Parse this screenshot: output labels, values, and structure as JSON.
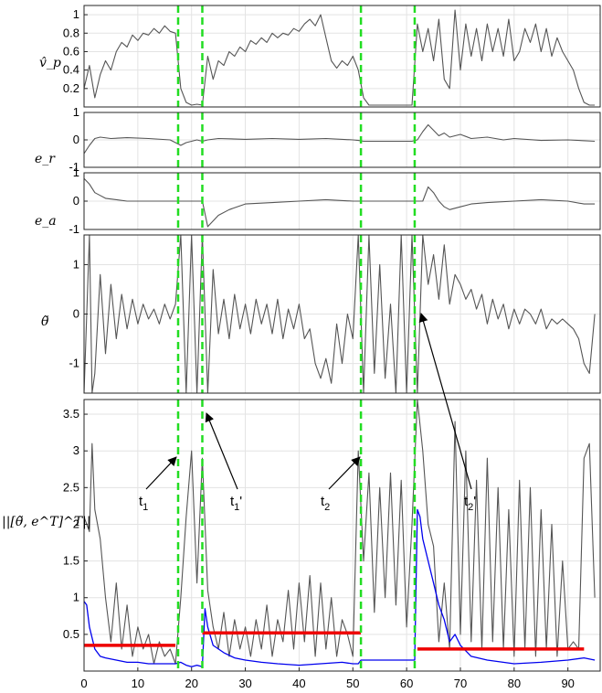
{
  "chart_data": [
    {
      "type": "line",
      "panel": "vp",
      "ylabel": "v̂_p",
      "xlim": [
        0,
        96
      ],
      "ylim": [
        0,
        1.1
      ],
      "yticks": [
        0.2,
        0.4,
        0.6,
        0.8,
        1
      ],
      "grid": true,
      "series": [
        {
          "color": "#555555",
          "x": [
            0,
            1,
            2,
            3,
            4,
            5,
            6,
            7,
            8,
            9,
            10,
            11,
            12,
            13,
            14,
            15,
            16,
            17,
            18,
            19,
            20,
            21,
            22,
            23,
            24,
            25,
            26,
            27,
            28,
            29,
            30,
            31,
            32,
            33,
            34,
            35,
            36,
            37,
            38,
            39,
            40,
            41,
            42,
            43,
            44,
            45,
            46,
            47,
            48,
            49,
            50,
            51,
            52,
            53,
            54,
            55,
            56,
            57,
            58,
            59,
            60,
            61,
            62,
            63,
            64,
            65,
            66,
            67,
            68,
            69,
            70,
            71,
            72,
            73,
            74,
            75,
            76,
            77,
            78,
            79,
            80,
            81,
            82,
            83,
            84,
            85,
            86,
            87,
            88,
            89,
            90,
            91,
            92,
            93,
            94,
            95
          ],
          "y": [
            0.2,
            0.45,
            0.1,
            0.35,
            0.5,
            0.4,
            0.6,
            0.7,
            0.65,
            0.78,
            0.72,
            0.8,
            0.78,
            0.85,
            0.8,
            0.88,
            0.82,
            0.8,
            0.2,
            0.05,
            0.02,
            0.03,
            0.02,
            0.55,
            0.3,
            0.5,
            0.45,
            0.6,
            0.55,
            0.65,
            0.6,
            0.72,
            0.68,
            0.75,
            0.7,
            0.8,
            0.75,
            0.8,
            0.78,
            0.85,
            0.82,
            0.9,
            0.95,
            0.88,
            1.0,
            0.75,
            0.5,
            0.42,
            0.5,
            0.45,
            0.55,
            0.4,
            0.1,
            0.02,
            0.02,
            0.02,
            0.02,
            0.02,
            0.02,
            0.02,
            0.02,
            0.02,
            0.9,
            0.6,
            0.85,
            0.5,
            0.95,
            0.3,
            0.2,
            1.05,
            0.4,
            0.9,
            0.55,
            0.85,
            0.5,
            0.9,
            0.6,
            0.85,
            0.55,
            0.95,
            0.5,
            0.6,
            0.85,
            0.7,
            0.9,
            0.6,
            0.85,
            0.55,
            0.75,
            0.6,
            0.5,
            0.4,
            0.2,
            0.05,
            0.02,
            0.02
          ]
        }
      ]
    },
    {
      "type": "line",
      "panel": "er",
      "ylabel": "e_r",
      "xlim": [
        0,
        96
      ],
      "ylim": [
        -1,
        1
      ],
      "yticks": [
        -1,
        0,
        1
      ],
      "grid": true,
      "series": [
        {
          "color": "#555555",
          "x": [
            0,
            1,
            2,
            3,
            5,
            8,
            12,
            16,
            17,
            18,
            19,
            20,
            21,
            22,
            23,
            25,
            30,
            35,
            40,
            45,
            50,
            51,
            52,
            55,
            60,
            61,
            62,
            63,
            64,
            65,
            66,
            67,
            68,
            70,
            72,
            75,
            78,
            80,
            85,
            90,
            95
          ],
          "y": [
            -0.5,
            -0.2,
            0.05,
            0.1,
            0.05,
            0.08,
            0.05,
            0.0,
            -0.1,
            -0.2,
            -0.1,
            -0.05,
            0.0,
            -0.05,
            0.0,
            0.05,
            0.02,
            0.05,
            0.02,
            0.05,
            0.0,
            -0.02,
            -0.05,
            -0.05,
            -0.05,
            -0.05,
            0.0,
            0.3,
            0.55,
            0.35,
            0.15,
            0.25,
            0.1,
            0.2,
            0.05,
            0.1,
            0.0,
            0.05,
            -0.02,
            0.0,
            -0.05
          ]
        }
      ]
    },
    {
      "type": "line",
      "panel": "ea",
      "ylabel": "e_a",
      "xlim": [
        0,
        96
      ],
      "ylim": [
        -1,
        1
      ],
      "yticks": [
        -1,
        0,
        1
      ],
      "grid": true,
      "series": [
        {
          "color": "#555555",
          "x": [
            0,
            1,
            2,
            3,
            4,
            6,
            8,
            10,
            15,
            20,
            22,
            23,
            25,
            27,
            30,
            35,
            40,
            45,
            50,
            52,
            55,
            60,
            62,
            63,
            64,
            65,
            66,
            67,
            68,
            70,
            72,
            75,
            80,
            85,
            90,
            93,
            95
          ],
          "y": [
            0.8,
            0.6,
            0.3,
            0.2,
            0.1,
            0.05,
            0.0,
            0.0,
            0.0,
            0.0,
            0.0,
            -0.9,
            -0.5,
            -0.3,
            -0.1,
            -0.05,
            0.0,
            0.05,
            0.0,
            0.0,
            0.0,
            0.0,
            0.0,
            0.0,
            0.5,
            0.3,
            0.0,
            -0.2,
            -0.3,
            -0.2,
            -0.1,
            -0.05,
            0.0,
            0.05,
            0.0,
            -0.1,
            -0.1
          ]
        }
      ]
    },
    {
      "type": "line",
      "panel": "theta",
      "ylabel": "θ̃",
      "xlim": [
        0,
        96
      ],
      "ylim": [
        -1.6,
        1.6
      ],
      "yticks": [
        -1,
        0,
        1
      ],
      "grid": true,
      "series": [
        {
          "color": "#555555",
          "x": [
            0,
            1,
            1.5,
            2,
            3,
            4,
            5,
            6,
            7,
            8,
            9,
            10,
            11,
            12,
            13,
            14,
            15,
            16,
            17,
            18,
            19,
            20,
            21,
            22,
            23,
            24,
            25,
            26,
            27,
            28,
            29,
            30,
            31,
            32,
            33,
            34,
            35,
            36,
            37,
            38,
            39,
            40,
            41,
            42,
            43,
            44,
            45,
            46,
            47,
            48,
            49,
            50,
            51,
            52,
            53,
            54,
            55,
            56,
            57,
            58,
            59,
            60,
            61,
            62,
            63,
            64,
            65,
            66,
            67,
            68,
            69,
            70,
            71,
            72,
            73,
            74,
            75,
            76,
            77,
            78,
            79,
            80,
            81,
            82,
            83,
            84,
            85,
            86,
            87,
            88,
            89,
            90,
            91,
            92,
            93,
            94,
            95
          ],
          "y": [
            -1.6,
            1.6,
            -1.6,
            -1.2,
            0.8,
            -0.8,
            0.6,
            -0.5,
            0.4,
            -0.3,
            0.3,
            -0.2,
            0.2,
            -0.1,
            0.1,
            -0.2,
            0.2,
            -0.1,
            0.2,
            1.6,
            -1.6,
            1.6,
            -1.6,
            1.6,
            -1.6,
            0.9,
            -0.4,
            0.3,
            -0.5,
            0.4,
            -0.3,
            0.2,
            -0.4,
            0.3,
            -0.2,
            0.2,
            -0.4,
            0.3,
            -0.5,
            0.1,
            -0.3,
            0.2,
            -0.5,
            -0.3,
            -1.0,
            -1.3,
            -0.9,
            -1.4,
            -0.2,
            -1.0,
            0.0,
            -0.5,
            1.6,
            -1.6,
            1.6,
            -1.2,
            1.0,
            -1.3,
            0.2,
            -1.6,
            1.6,
            -1.6,
            1.6,
            -1.6,
            1.6,
            0.6,
            1.2,
            0.3,
            1.4,
            0.2,
            0.8,
            0.6,
            0.3,
            0.5,
            0.1,
            0.4,
            -0.2,
            0.3,
            -0.1,
            0.2,
            -0.3,
            0.1,
            -0.2,
            0.1,
            0.0,
            -0.2,
            0.1,
            -0.3,
            -0.1,
            -0.2,
            -0.1,
            -0.2,
            -0.3,
            -0.5,
            -1.0,
            -1.2,
            0.0
          ]
        }
      ]
    },
    {
      "type": "line",
      "panel": "norm",
      "ylabel": "||[θ̃, e^T]^T||",
      "xlim": [
        0,
        96
      ],
      "ylim": [
        0,
        3.7
      ],
      "yticks": [
        0.5,
        1,
        1.5,
        2,
        2.5,
        3,
        3.5
      ],
      "xticks": [
        0,
        10,
        20,
        30,
        40,
        50,
        60,
        70,
        80,
        90
      ],
      "grid": true,
      "series": [
        {
          "color": "#555555",
          "x": [
            0,
            1,
            1.5,
            2,
            3,
            4,
            5,
            6,
            7,
            8,
            9,
            10,
            11,
            12,
            13,
            14,
            15,
            16,
            17,
            18,
            19,
            20,
            21,
            22,
            23,
            24,
            25,
            26,
            27,
            28,
            29,
            30,
            31,
            32,
            33,
            34,
            35,
            36,
            37,
            38,
            39,
            40,
            41,
            42,
            43,
            44,
            45,
            46,
            47,
            48,
            49,
            50,
            51,
            52,
            53,
            54,
            55,
            56,
            57,
            58,
            59,
            60,
            61,
            62,
            63,
            64,
            65,
            66,
            67,
            68,
            69,
            70,
            71,
            72,
            73,
            74,
            75,
            76,
            77,
            78,
            79,
            80,
            81,
            82,
            83,
            84,
            85,
            86,
            87,
            88,
            89,
            90,
            91,
            92,
            93,
            94,
            95
          ],
          "y": [
            2.1,
            1.9,
            3.1,
            2.2,
            1.8,
            1.0,
            0.4,
            1.2,
            0.3,
            0.9,
            0.2,
            0.6,
            0.3,
            0.5,
            0.1,
            0.4,
            0.2,
            0.3,
            0.1,
            1.0,
            2.1,
            3.0,
            1.2,
            2.9,
            1.1,
            0.6,
            0.3,
            0.8,
            0.2,
            0.7,
            0.3,
            0.6,
            0.2,
            0.7,
            0.3,
            0.9,
            0.2,
            0.7,
            0.4,
            1.1,
            0.3,
            1.2,
            0.4,
            1.3,
            0.2,
            1.2,
            0.3,
            1.0,
            0.2,
            0.7,
            0.5,
            0.2,
            3.0,
            1.5,
            2.7,
            0.8,
            2.5,
            1.0,
            2.7,
            0.9,
            2.6,
            0.6,
            2.0,
            3.7,
            3.0,
            2.0,
            1.7,
            0.4,
            1.2,
            0.3,
            3.4,
            0.5,
            3.0,
            0.4,
            2.6,
            0.3,
            2.9,
            0.4,
            2.5,
            0.3,
            2.2,
            0.2,
            2.6,
            0.3,
            2.5,
            0.2,
            2.2,
            0.3,
            2.0,
            0.2,
            1.5,
            0.3,
            0.4,
            0.3,
            2.9,
            3.1,
            1.0
          ]
        },
        {
          "color": "#0000ee",
          "x": [
            0,
            0.5,
            1,
            2,
            3,
            4,
            6,
            8,
            10,
            12,
            14,
            16,
            17,
            18,
            19,
            20,
            21,
            22,
            22.5,
            23,
            24,
            26,
            28,
            30,
            33,
            36,
            40,
            44,
            48,
            50,
            51,
            51.5,
            52,
            55,
            58,
            61.5,
            62,
            62.5,
            63,
            64,
            65,
            66,
            67,
            68,
            69,
            70,
            72,
            75,
            80,
            85,
            90,
            93,
            95
          ],
          "y": [
            0.95,
            0.9,
            0.6,
            0.3,
            0.2,
            0.18,
            0.15,
            0.12,
            0.12,
            0.1,
            0.1,
            0.1,
            0.1,
            0.12,
            0.08,
            0.06,
            0.08,
            0.06,
            0.85,
            0.6,
            0.35,
            0.25,
            0.18,
            0.15,
            0.12,
            0.1,
            0.08,
            0.1,
            0.12,
            0.1,
            0.1,
            0.15,
            0.15,
            0.15,
            0.15,
            0.15,
            2.2,
            2.1,
            1.8,
            1.5,
            1.2,
            0.9,
            0.7,
            0.4,
            0.5,
            0.35,
            0.2,
            0.15,
            0.1,
            0.12,
            0.15,
            0.18,
            0.15
          ]
        }
      ],
      "thresholds": [
        {
          "x0": 0,
          "x1": 17,
          "y": 0.35,
          "color": "#ee0000"
        },
        {
          "x0": 22,
          "x1": 51.5,
          "y": 0.52,
          "color": "#ee0000"
        },
        {
          "x0": 62,
          "x1": 93,
          "y": 0.3,
          "color": "#ee0000"
        }
      ],
      "annotations": [
        {
          "text": "t",
          "sub": "1",
          "prime": ""
        },
        {
          "text": "t",
          "sub": "1",
          "prime": "'"
        },
        {
          "text": "t",
          "sub": "2",
          "prime": ""
        },
        {
          "text": "t",
          "sub": "2",
          "prime": "'"
        }
      ]
    }
  ],
  "vlines": {
    "x": [
      17.5,
      22,
      51.5,
      61.5
    ],
    "color": "#22dd22"
  }
}
